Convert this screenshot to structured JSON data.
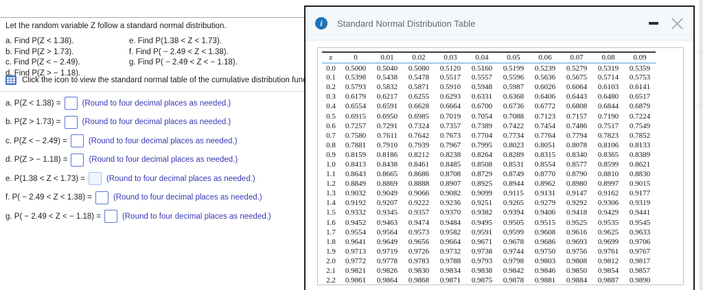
{
  "problem": {
    "intro": "Let the random variable Z follow a standard normal distribution.",
    "parts_left": [
      "a. Find P(Z < 1.38).",
      "b. Find P(Z > 1.73).",
      "c. Find P(Z < − 2.49).",
      "d. Find P(Z > − 1.18)."
    ],
    "parts_right": [
      "e. Find P(1.38 < Z < 1.73).",
      "f. Find P( − 2.49 < Z < 1.38).",
      "g. Find P( − 2.49 < Z < − 1.18)."
    ],
    "table_note": "Click the icon to view the standard normal table of the cumulative distribution function.",
    "table_icon": "table-grid-icon"
  },
  "answers": [
    {
      "label": "a. P(Z < 1.38) =",
      "value": "",
      "note": "(Round to four decimal places as needed.)",
      "focused": false
    },
    {
      "label": "b. P(Z > 1.73) =",
      "value": "",
      "note": "(Round to four decimal places as needed.)",
      "focused": false
    },
    {
      "label": "c. P(Z < − 2.49) =",
      "value": "",
      "note": "(Round to four decimal places as needed.)",
      "focused": false
    },
    {
      "label": "d. P(Z > − 1.18) =",
      "value": "",
      "note": "(Round to four decimal places as needed.)",
      "focused": false
    },
    {
      "label": "e. P(1.38 < Z < 1.73) =",
      "value": "",
      "note": "(Round to four decimal places as needed.)",
      "focused": true
    },
    {
      "label": "f. P( − 2.49 < Z < 1.38) =",
      "value": "",
      "note": "(Round to four decimal places as needed.)",
      "focused": false
    },
    {
      "label": "g. P( − 2.49 < Z < − 1.18) =",
      "value": "",
      "note": "(Round to four decimal places as needed.)",
      "focused": false
    }
  ],
  "modal": {
    "title": "Standard Normal Distribution Table",
    "icons": {
      "info": "info-icon",
      "minimize": "minimize-icon",
      "close": "close-icon"
    }
  },
  "ztable": {
    "columns": [
      "z",
      "0",
      "0.01",
      "0.02",
      "0.03",
      "0.04",
      "0.05",
      "0.06",
      "0.07",
      "0.08",
      "0.09"
    ],
    "rows": [
      {
        "z": "0.0",
        "values": [
          "0.5000",
          "0.5040",
          "0.5080",
          "0.5120",
          "0.5160",
          "0.5199",
          "0.5239",
          "0.5279",
          "0.5319",
          "0.5359"
        ]
      },
      {
        "z": "0.1",
        "values": [
          "0.5398",
          "0.5438",
          "0.5478",
          "0.5517",
          "0.5557",
          "0.5596",
          "0.5636",
          "0.5675",
          "0.5714",
          "0.5753"
        ]
      },
      {
        "z": "0.2",
        "values": [
          "0.5793",
          "0.5832",
          "0.5871",
          "0.5910",
          "0.5948",
          "0.5987",
          "0.6026",
          "0.6064",
          "0.6103",
          "0.6141"
        ]
      },
      {
        "z": "0.3",
        "values": [
          "0.6179",
          "0.6217",
          "0.6255",
          "0.6293",
          "0.6331",
          "0.6368",
          "0.6406",
          "0.6443",
          "0.6480",
          "0.6517"
        ]
      },
      {
        "z": "0.4",
        "values": [
          "0.6554",
          "0.6591",
          "0.6628",
          "0.6664",
          "0.6700",
          "0.6736",
          "0.6772",
          "0.6808",
          "0.6844",
          "0.6879"
        ]
      },
      {
        "z": "0.5",
        "values": [
          "0.6915",
          "0.6950",
          "0.6985",
          "0.7019",
          "0.7054",
          "0.7088",
          "0.7123",
          "0.7157",
          "0.7190",
          "0.7224"
        ]
      },
      {
        "z": "0.6",
        "values": [
          "0.7257",
          "0.7291",
          "0.7324",
          "0.7357",
          "0.7389",
          "0.7422",
          "0.7454",
          "0.7486",
          "0.7517",
          "0.7549"
        ]
      },
      {
        "z": "0.7",
        "values": [
          "0.7580",
          "0.7611",
          "0.7642",
          "0.7673",
          "0.7704",
          "0.7734",
          "0.7764",
          "0.7794",
          "0.7823",
          "0.7852"
        ]
      },
      {
        "z": "0.8",
        "values": [
          "0.7881",
          "0.7910",
          "0.7939",
          "0.7967",
          "0.7995",
          "0.8023",
          "0.8051",
          "0.8078",
          "0.8106",
          "0.8133"
        ]
      },
      {
        "z": "0.9",
        "values": [
          "0.8159",
          "0.8186",
          "0.8212",
          "0.8238",
          "0.8264",
          "0.8289",
          "0.8315",
          "0.8340",
          "0.8365",
          "0.8389"
        ]
      },
      {
        "z": "1.0",
        "values": [
          "0.8413",
          "0.8438",
          "0.8461",
          "0.8485",
          "0.8508",
          "0.8531",
          "0.8554",
          "0.8577",
          "0.8599",
          "0.8621"
        ]
      },
      {
        "z": "1.1",
        "values": [
          "0.8643",
          "0.8665",
          "0.8686",
          "0.8708",
          "0.8729",
          "0.8749",
          "0.8770",
          "0.8790",
          "0.8810",
          "0.8830"
        ]
      },
      {
        "z": "1.2",
        "values": [
          "0.8849",
          "0.8869",
          "0.8888",
          "0.8907",
          "0.8925",
          "0.8944",
          "0.8962",
          "0.8980",
          "0.8997",
          "0.9015"
        ]
      },
      {
        "z": "1.3",
        "values": [
          "0.9032",
          "0.9049",
          "0.9066",
          "0.9082",
          "0.9099",
          "0.9115",
          "0.9131",
          "0.9147",
          "0.9162",
          "0.9177"
        ]
      },
      {
        "z": "1.4",
        "values": [
          "0.9192",
          "0.9207",
          "0.9222",
          "0.9236",
          "0.9251",
          "0.9265",
          "0.9279",
          "0.9292",
          "0.9306",
          "0.9319"
        ]
      },
      {
        "z": "1.5",
        "values": [
          "0.9332",
          "0.9345",
          "0.9357",
          "0.9370",
          "0.9382",
          "0.9394",
          "0.9406",
          "0.9418",
          "0.9429",
          "0.9441"
        ]
      },
      {
        "z": "1.6",
        "values": [
          "0.9452",
          "0.9463",
          "0.9474",
          "0.9484",
          "0.9495",
          "0.9505",
          "0.9515",
          "0.9525",
          "0.9535",
          "0.9545"
        ]
      },
      {
        "z": "1.7",
        "values": [
          "0.9554",
          "0.9564",
          "0.9573",
          "0.9582",
          "0.9591",
          "0.9599",
          "0.9608",
          "0.9616",
          "0.9625",
          "0.9633"
        ]
      },
      {
        "z": "1.8",
        "values": [
          "0.9641",
          "0.9649",
          "0.9656",
          "0.9664",
          "0.9671",
          "0.9678",
          "0.9686",
          "0.9693",
          "0.9699",
          "0.9706"
        ]
      },
      {
        "z": "1.9",
        "values": [
          "0.9713",
          "0.9719",
          "0.9726",
          "0.9732",
          "0.9738",
          "0.9744",
          "0.9750",
          "0.9756",
          "0.9761",
          "0.9767"
        ]
      },
      {
        "z": "2.0",
        "values": [
          "0.9772",
          "0.9778",
          "0.9783",
          "0.9788",
          "0.9793",
          "0.9798",
          "0.9803",
          "0.9808",
          "0.9812",
          "0.9817"
        ]
      },
      {
        "z": "2.1",
        "values": [
          "0.9821",
          "0.9826",
          "0.9830",
          "0.9834",
          "0.9838",
          "0.9842",
          "0.9846",
          "0.9850",
          "0.9854",
          "0.9857"
        ]
      },
      {
        "z": "2.2",
        "values": [
          "0.9861",
          "0.9864",
          "0.9868",
          "0.9871",
          "0.9875",
          "0.9878",
          "0.9881",
          "0.9884",
          "0.9887",
          "0.9890"
        ]
      }
    ]
  },
  "colors": {
    "accent_blue": "#1e73b8",
    "note_text": "#3939b4",
    "input_border": "#5b76d6",
    "header_bg": "#f4f8fb",
    "table_header_rule": "#9ecaed"
  }
}
